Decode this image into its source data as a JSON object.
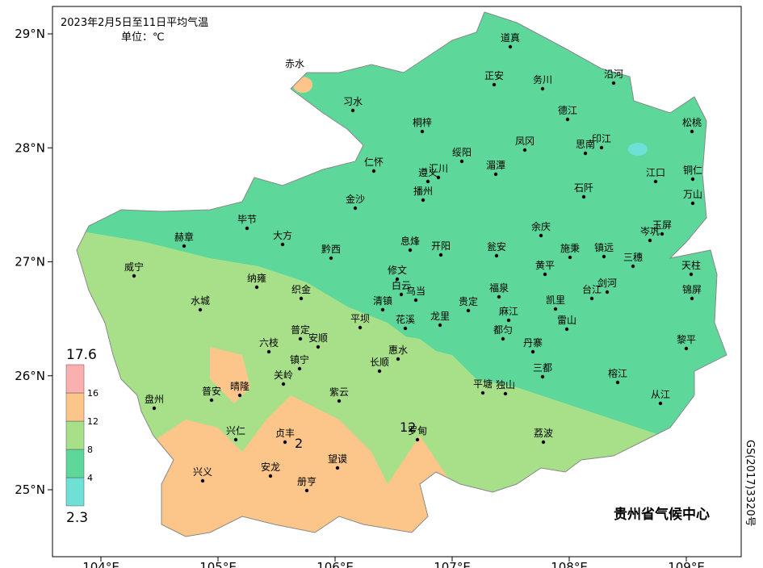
{
  "title": "2023年2月5日至11日平均气温",
  "unit": "单位：℃",
  "lon_ticks": [
    {
      "value": 104,
      "label": "104°E"
    },
    {
      "value": 105,
      "label": "105°E"
    },
    {
      "value": 106,
      "label": "106°E"
    },
    {
      "value": 107,
      "label": "107°E"
    },
    {
      "value": 108,
      "label": "108°E"
    },
    {
      "value": 109,
      "label": "109°E"
    }
  ],
  "lat_ticks": [
    {
      "value": 25,
      "label": "25°N"
    },
    {
      "value": 26,
      "label": "26°N"
    },
    {
      "value": 27,
      "label": "27°N"
    },
    {
      "value": 28,
      "label": "28°N"
    },
    {
      "value": 29,
      "label": "29°N"
    }
  ],
  "legend": {
    "levels": [
      2.3,
      4,
      8,
      12,
      16,
      17.6
    ],
    "colors": [
      "#6fe0d6",
      "#5ed79a",
      "#a8e08a",
      "#fcc68a",
      "#fbb0b0"
    ]
  },
  "contour_labels": [
    "12",
    "2"
  ],
  "cities": [
    "道真",
    "正安",
    "务川",
    "沿河",
    "赤水",
    "习水",
    "桐梓",
    "德江",
    "印江",
    "松桃",
    "凤冈",
    "思南",
    "仁怀",
    "绥阳",
    "湄潭",
    "遵义",
    "汇川",
    "播州",
    "石阡",
    "江口",
    "铜仁",
    "万山",
    "金沙",
    "毕节",
    "赫章",
    "大方",
    "黔西",
    "息烽",
    "开阳",
    "余庆",
    "瓮安",
    "施秉",
    "镇远",
    "玉屏",
    "岑巩",
    "黄平",
    "三穗",
    "天柱",
    "威宁",
    "纳雍",
    "修文",
    "织金",
    "白云",
    "乌当",
    "清镇",
    "贵定",
    "福泉",
    "麻江",
    "凯里",
    "台江",
    "剑河",
    "锦屏",
    "水城",
    "平坝",
    "花溪",
    "龙里",
    "雷山",
    "都匀",
    "普定",
    "安顺",
    "六枝",
    "丹寨",
    "惠水",
    "黎平",
    "镇宁",
    "长顺",
    "三都",
    "关岭",
    "榕江",
    "晴隆",
    "紫云",
    "平塘",
    "独山",
    "普安",
    "盘州",
    "从江",
    "兴仁",
    "贞丰",
    "罗甸",
    "荔波",
    "望谟",
    "安龙",
    "兴义",
    "册亨"
  ],
  "footer": "贵州省气候中心",
  "approval": "GS(2017)3320号"
}
